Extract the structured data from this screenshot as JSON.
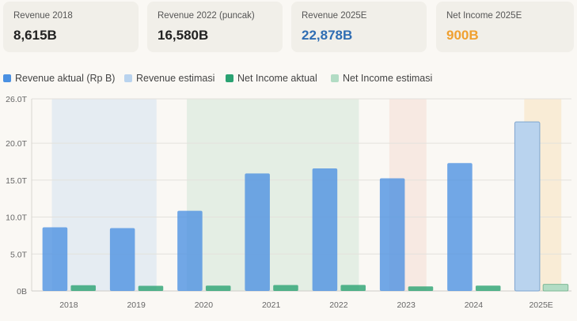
{
  "cards": [
    {
      "label": "Revenue 2018",
      "value": "8,615B",
      "color": "#222222"
    },
    {
      "label": "Revenue 2022 (puncak)",
      "value": "16,580B",
      "color": "#222222"
    },
    {
      "label": "Revenue 2025E",
      "value": "22,878B",
      "color": "#2f6db3"
    },
    {
      "label": "Net Income 2025E",
      "value": "900B",
      "color": "#f0a030"
    }
  ],
  "legend": [
    {
      "label": "Revenue aktual (Rp B)",
      "color": "#4a90e2"
    },
    {
      "label": "Revenue estimasi",
      "color": "#b9d3ee"
    },
    {
      "label": "Net Income aktual",
      "color": "#2aa272"
    },
    {
      "label": "Net Income estimasi",
      "color": "#b2dcc4"
    }
  ],
  "chart_data": {
    "type": "bar",
    "categories": [
      "2018",
      "2019",
      "2020",
      "2021",
      "2022",
      "2023",
      "2024",
      "2025E"
    ],
    "series": [
      {
        "name": "Revenue aktual (Rp B)",
        "values": [
          8615,
          8500,
          10850,
          15900,
          16580,
          15250,
          17300,
          null
        ]
      },
      {
        "name": "Revenue estimasi",
        "values": [
          null,
          null,
          null,
          null,
          null,
          null,
          null,
          22878
        ]
      },
      {
        "name": "Net Income aktual",
        "values": [
          780,
          700,
          720,
          800,
          820,
          620,
          720,
          null
        ]
      },
      {
        "name": "Net Income estimasi",
        "values": [
          null,
          null,
          null,
          null,
          null,
          null,
          null,
          900
        ]
      }
    ],
    "ylim": [
      0,
      26000
    ],
    "y_ticks": [
      0,
      5000,
      10000,
      15000,
      20000,
      26000
    ],
    "y_tick_labels": [
      "0B",
      "5.0T",
      "10.0T",
      "15.0T",
      "20.0T",
      "26.0T"
    ],
    "highlight_bands": [
      {
        "from": "2018",
        "to": "2019",
        "color": "#dde8f2"
      },
      {
        "from": "2020",
        "to": "2022",
        "color": "#dcebdf"
      },
      {
        "from": "2023",
        "to": "2023",
        "color": "#f6e4dc"
      },
      {
        "from": "2025E",
        "to": "2025E",
        "color": "#f8e8cc"
      }
    ],
    "grid": true,
    "legend_position": "top-left"
  }
}
